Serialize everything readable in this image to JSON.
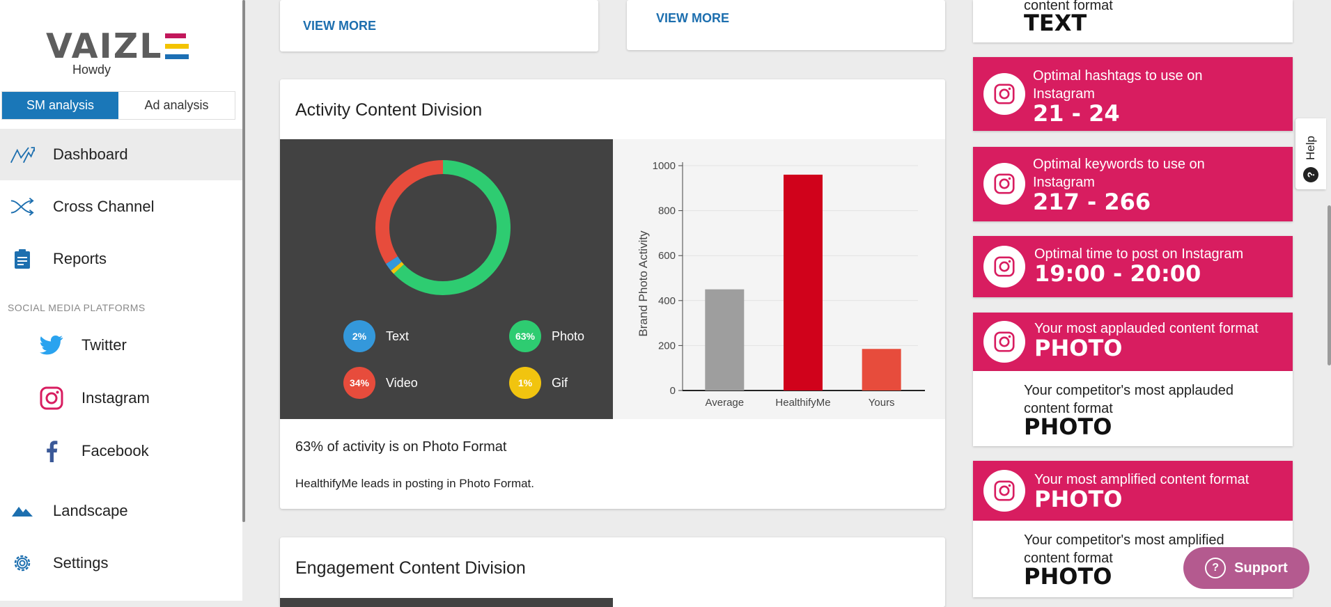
{
  "brand": {
    "logo_text": "VAIZL",
    "greeting": "Howdy"
  },
  "analysis_tabs": {
    "sm": "SM analysis",
    "ad": "Ad analysis"
  },
  "nav": {
    "dashboard": "Dashboard",
    "cross_channel": "Cross Channel",
    "reports": "Reports",
    "section_title": "SOCIAL MEDIA PLATFORMS",
    "twitter": "Twitter",
    "instagram": "Instagram",
    "facebook": "Facebook",
    "landscape": "Landscape",
    "settings": "Settings"
  },
  "top_cards": {
    "left_link": "VIEW MORE",
    "right_link": "VIEW MORE"
  },
  "activity_card": {
    "title": "Activity Content Division",
    "summary": "63% of activity is on Photo Format",
    "detail": "HealthifyMe leads in posting in Photo Format.",
    "legend": [
      {
        "pct": "2%",
        "label": "Text",
        "color": "#3498db"
      },
      {
        "pct": "63%",
        "label": "Photo",
        "color": "#2ecc71"
      },
      {
        "pct": "34%",
        "label": "Video",
        "color": "#e74c3c"
      },
      {
        "pct": "1%",
        "label": "Gif",
        "color": "#f1c40f"
      }
    ]
  },
  "engagement_card": {
    "title": "Engagement Content Division"
  },
  "chart_data": [
    {
      "type": "pie",
      "categories": [
        "Text",
        "Photo",
        "Video",
        "Gif"
      ],
      "values": [
        2,
        63,
        34,
        1
      ],
      "colors": [
        "#3498db",
        "#2ecc71",
        "#e74c3c",
        "#f1c40f"
      ]
    },
    {
      "type": "bar",
      "categories": [
        "Average",
        "HealthifyMe",
        "Yours"
      ],
      "values": [
        450,
        960,
        185
      ],
      "colors": [
        "#9e9e9e",
        "#d0021b",
        "#e74c3c"
      ],
      "ylabel": "Brand Photo Activity",
      "ylim": [
        0,
        1000
      ],
      "yticks": [
        0,
        200,
        400,
        600,
        800,
        1000
      ],
      "grid": true
    }
  ],
  "insights": {
    "top_partial": {
      "text": "content format",
      "value": "TEXT"
    },
    "hashtags": {
      "text": "Optimal hashtags to use on Instagram",
      "value": "21 - 24"
    },
    "keywords": {
      "text": "Optimal keywords to use on Instagram",
      "value": "217 - 266"
    },
    "time": {
      "text": "Optimal time to post on Instagram",
      "value": "19:00 - 20:00"
    },
    "applauded": {
      "text": "Your most applauded content format",
      "value": "PHOTO"
    },
    "competitor_applauded": {
      "text": "Your competitor's most applauded content format",
      "value": "PHOTO"
    },
    "amplified": {
      "text": "Your most amplified content format",
      "value": "PHOTO"
    },
    "competitor_amplified": {
      "text": "Your competitor's most amplified content format",
      "value": "PHOTO"
    }
  },
  "help": {
    "label": "Help"
  },
  "support": {
    "label": "Support"
  }
}
